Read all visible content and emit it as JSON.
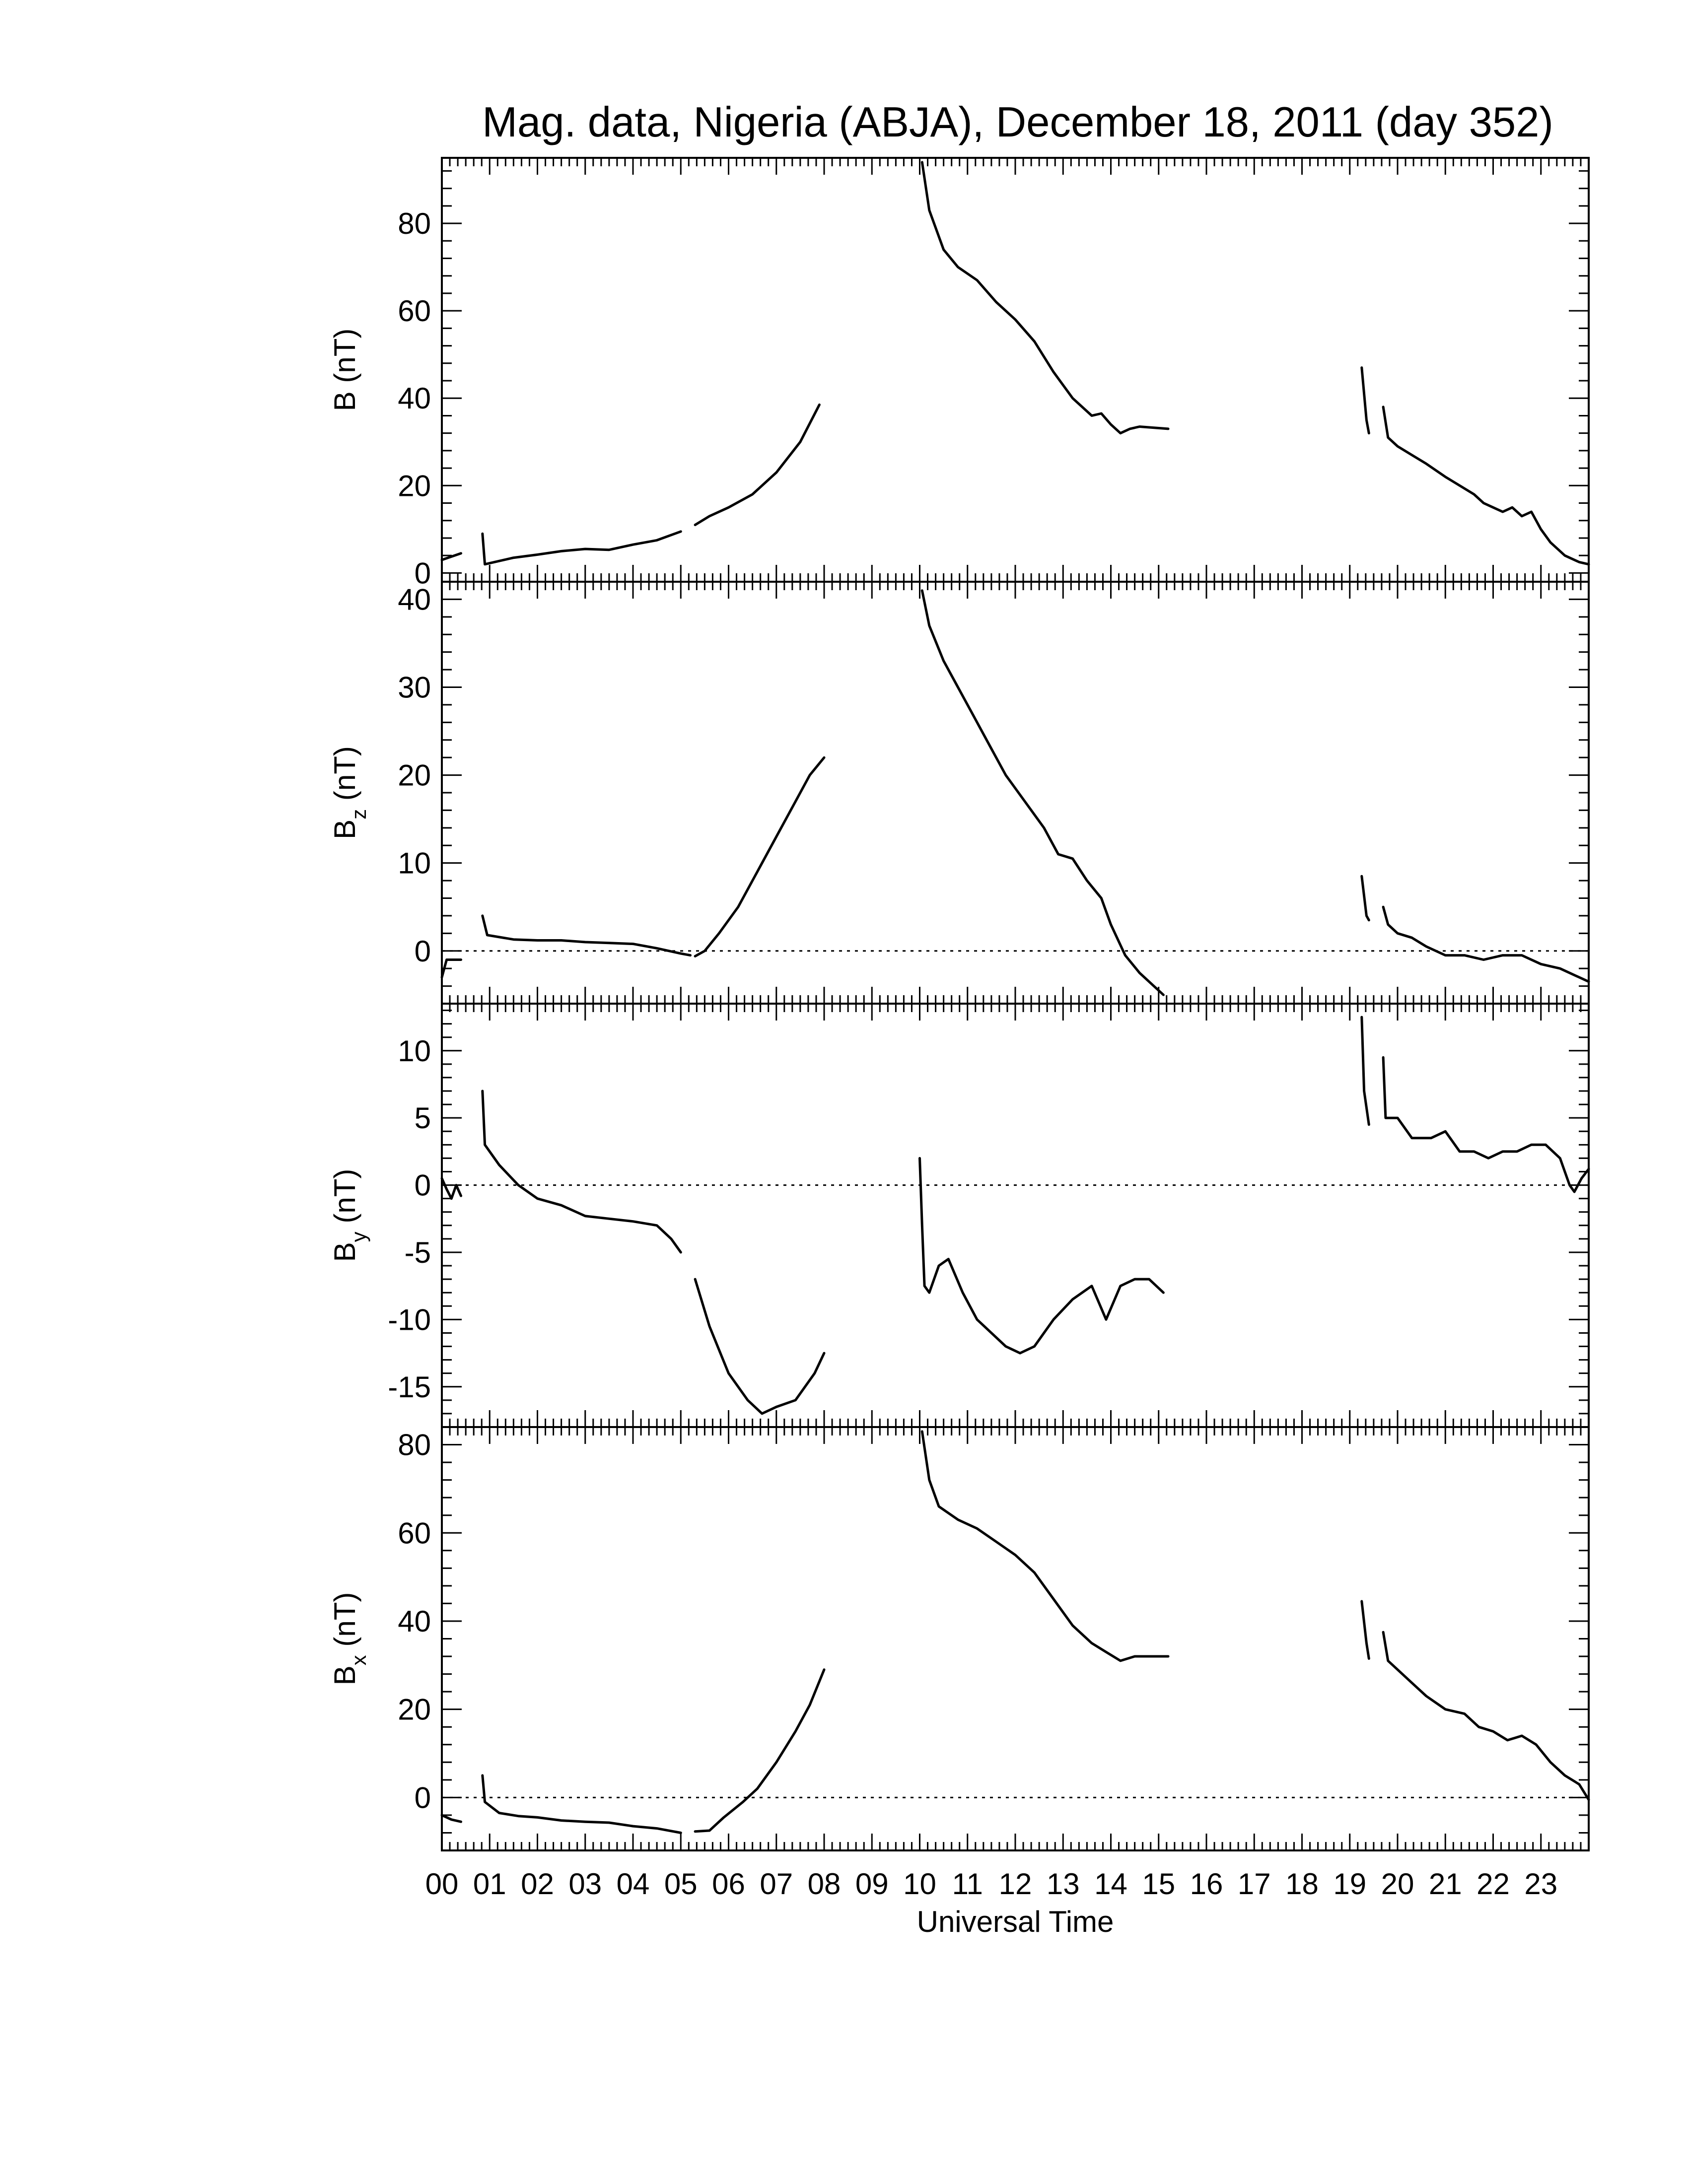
{
  "chart_data": {
    "type": "line",
    "title": "Mag. data, Nigeria (ABJA), December 18, 2011 (day 352)",
    "xlabel": "Universal Time",
    "x_unit": "hours UT",
    "xlim": [
      0,
      24
    ],
    "x_tick_labels": [
      "00",
      "01",
      "02",
      "03",
      "04",
      "05",
      "06",
      "07",
      "08",
      "09",
      "10",
      "11",
      "12",
      "13",
      "14",
      "15",
      "16",
      "17",
      "18",
      "19",
      "20",
      "21",
      "22",
      "23"
    ],
    "colors": {
      "line": "#000000",
      "zero_line": "#000000",
      "frame": "#000000"
    },
    "panels": [
      {
        "id": "B",
        "ylabel_main": "B",
        "ylabel_sub": "",
        "ylabel_unit": "(nT)",
        "ylim": [
          -2,
          95
        ],
        "yticks": [
          0,
          20,
          40,
          60,
          80
        ],
        "zero_line": false,
        "segments": [
          [
            [
              0.0,
              3
            ],
            [
              0.4,
              4.5
            ]
          ],
          [
            [
              0.85,
              9
            ],
            [
              0.9,
              2
            ],
            [
              1.5,
              3.5
            ],
            [
              2.0,
              4.2
            ],
            [
              2.5,
              5.0
            ],
            [
              3.0,
              5.5
            ],
            [
              3.5,
              5.3
            ],
            [
              4.0,
              6.5
            ],
            [
              4.5,
              7.5
            ],
            [
              5.0,
              9.5
            ]
          ],
          [
            [
              5.3,
              11
            ],
            [
              5.6,
              13
            ],
            [
              6.0,
              15
            ],
            [
              6.5,
              18
            ],
            [
              7.0,
              23
            ],
            [
              7.5,
              30
            ],
            [
              7.9,
              38.5
            ]
          ],
          [
            [
              10.05,
              94
            ],
            [
              10.2,
              83
            ],
            [
              10.5,
              74
            ],
            [
              10.8,
              70
            ],
            [
              11.2,
              67
            ],
            [
              11.6,
              62
            ],
            [
              12.0,
              58
            ],
            [
              12.4,
              53
            ],
            [
              12.8,
              46
            ],
            [
              13.2,
              40
            ],
            [
              13.6,
              36
            ],
            [
              13.8,
              36.5
            ],
            [
              14.0,
              34
            ],
            [
              14.2,
              32
            ],
            [
              14.4,
              33
            ],
            [
              14.6,
              33.5
            ],
            [
              15.2,
              33
            ]
          ],
          [
            [
              19.25,
              47
            ],
            [
              19.35,
              35
            ],
            [
              19.4,
              32
            ]
          ],
          [
            [
              19.7,
              38
            ],
            [
              19.8,
              31
            ],
            [
              20.0,
              29
            ],
            [
              20.3,
              27
            ],
            [
              20.6,
              25
            ],
            [
              21.0,
              22
            ],
            [
              21.3,
              20
            ],
            [
              21.6,
              18
            ],
            [
              21.8,
              16
            ],
            [
              22.0,
              15
            ],
            [
              22.2,
              14
            ],
            [
              22.4,
              15
            ],
            [
              22.6,
              13
            ],
            [
              22.8,
              14
            ],
            [
              23.0,
              10
            ],
            [
              23.2,
              7
            ],
            [
              23.5,
              4
            ],
            [
              23.8,
              2.5
            ],
            [
              24.0,
              2
            ]
          ]
        ]
      },
      {
        "id": "Bz",
        "ylabel_main": "B",
        "ylabel_sub": "z",
        "ylabel_unit": "(nT)",
        "ylim": [
          -6,
          42
        ],
        "yticks": [
          0,
          10,
          20,
          30,
          40
        ],
        "zero_line": true,
        "segments": [
          [
            [
              0.0,
              -3
            ],
            [
              0.1,
              -1
            ],
            [
              0.4,
              -1
            ]
          ],
          [
            [
              0.85,
              4
            ],
            [
              0.95,
              1.8
            ],
            [
              1.5,
              1.3
            ],
            [
              2.0,
              1.2
            ],
            [
              2.5,
              1.2
            ],
            [
              3.0,
              1.0
            ],
            [
              3.5,
              0.9
            ],
            [
              4.0,
              0.8
            ],
            [
              4.5,
              0.3
            ],
            [
              5.0,
              -0.3
            ],
            [
              5.2,
              -0.5
            ]
          ],
          [
            [
              5.3,
              -0.6
            ],
            [
              5.5,
              0
            ],
            [
              5.8,
              2
            ],
            [
              6.2,
              5
            ],
            [
              6.6,
              9
            ],
            [
              7.0,
              13
            ],
            [
              7.4,
              17
            ],
            [
              7.7,
              20
            ],
            [
              8.0,
              22
            ]
          ],
          [
            [
              10.05,
              41
            ],
            [
              10.2,
              37
            ],
            [
              10.5,
              33
            ],
            [
              10.8,
              30
            ],
            [
              11.1,
              27
            ],
            [
              11.5,
              23
            ],
            [
              11.8,
              20
            ],
            [
              12.2,
              17
            ],
            [
              12.6,
              14
            ],
            [
              12.9,
              11
            ],
            [
              13.2,
              10.5
            ],
            [
              13.5,
              8
            ],
            [
              13.8,
              6
            ],
            [
              14.0,
              3
            ],
            [
              14.3,
              -0.5
            ],
            [
              14.6,
              -2.5
            ],
            [
              14.9,
              -4
            ],
            [
              15.1,
              -5
            ]
          ],
          [
            [
              19.25,
              8.5
            ],
            [
              19.35,
              4
            ],
            [
              19.4,
              3.5
            ]
          ],
          [
            [
              19.7,
              5
            ],
            [
              19.8,
              3
            ],
            [
              20.0,
              2
            ],
            [
              20.3,
              1.5
            ],
            [
              20.6,
              0.5
            ],
            [
              21.0,
              -0.5
            ],
            [
              21.4,
              -0.5
            ],
            [
              21.8,
              -1
            ],
            [
              22.2,
              -0.5
            ],
            [
              22.6,
              -0.5
            ],
            [
              23.0,
              -1.5
            ],
            [
              23.4,
              -2
            ],
            [
              23.8,
              -3
            ],
            [
              24.0,
              -3.5
            ]
          ]
        ]
      },
      {
        "id": "By",
        "ylabel_main": "B",
        "ylabel_sub": "y",
        "ylabel_unit": "(nT)",
        "ylim": [
          -18,
          13.5
        ],
        "yticks": [
          -15,
          -10,
          -5,
          0,
          5,
          10
        ],
        "yticklabels": [
          "-15",
          "-10",
          "-5",
          "0",
          "5",
          "10"
        ],
        "zero_line": true,
        "segments": [
          [
            [
              0.0,
              0.5
            ],
            [
              0.1,
              -0.3
            ],
            [
              0.2,
              -1
            ],
            [
              0.3,
              0
            ],
            [
              0.4,
              -0.8
            ]
          ],
          [
            [
              0.85,
              7
            ],
            [
              0.9,
              3
            ],
            [
              1.2,
              1.5
            ],
            [
              1.6,
              0
            ],
            [
              2.0,
              -1
            ],
            [
              2.5,
              -1.5
            ],
            [
              3.0,
              -2.3
            ],
            [
              3.5,
              -2.5
            ],
            [
              4.0,
              -2.7
            ],
            [
              4.5,
              -3
            ],
            [
              4.8,
              -4
            ],
            [
              5.0,
              -5
            ]
          ],
          [
            [
              5.3,
              -7
            ],
            [
              5.6,
              -10.5
            ],
            [
              6.0,
              -14
            ],
            [
              6.4,
              -16
            ],
            [
              6.7,
              -17
            ],
            [
              7.0,
              -16.5
            ],
            [
              7.4,
              -16
            ],
            [
              7.8,
              -14
            ],
            [
              8.0,
              -12.5
            ]
          ],
          [
            [
              10.0,
              2
            ],
            [
              10.05,
              -3
            ],
            [
              10.1,
              -7.5
            ],
            [
              10.2,
              -8
            ],
            [
              10.4,
              -6
            ],
            [
              10.6,
              -5.5
            ],
            [
              10.9,
              -8
            ],
            [
              11.2,
              -10
            ],
            [
              11.5,
              -11
            ],
            [
              11.8,
              -12
            ],
            [
              12.1,
              -12.5
            ],
            [
              12.4,
              -12
            ],
            [
              12.8,
              -10
            ],
            [
              13.2,
              -8.5
            ],
            [
              13.6,
              -7.5
            ],
            [
              13.9,
              -10
            ],
            [
              14.2,
              -7.5
            ],
            [
              14.5,
              -7
            ],
            [
              14.8,
              -7
            ],
            [
              15.1,
              -8
            ]
          ],
          [
            [
              19.25,
              12.5
            ],
            [
              19.3,
              7
            ],
            [
              19.4,
              4.5
            ]
          ],
          [
            [
              19.7,
              9.5
            ],
            [
              19.75,
              5
            ],
            [
              20.0,
              5
            ],
            [
              20.3,
              3.5
            ],
            [
              20.7,
              3.5
            ],
            [
              21.0,
              4
            ],
            [
              21.3,
              2.5
            ],
            [
              21.6,
              2.5
            ],
            [
              21.9,
              2
            ],
            [
              22.2,
              2.5
            ],
            [
              22.5,
              2.5
            ],
            [
              22.8,
              3
            ],
            [
              23.1,
              3
            ],
            [
              23.4,
              2
            ],
            [
              23.6,
              0
            ],
            [
              23.7,
              -0.5
            ],
            [
              23.85,
              0.5
            ],
            [
              24.0,
              1.2
            ]
          ]
        ]
      },
      {
        "id": "Bx",
        "ylabel_main": "B",
        "ylabel_sub": "x",
        "ylabel_unit": "(nT)",
        "ylim": [
          -12,
          84
        ],
        "yticks": [
          0,
          20,
          40,
          60,
          80
        ],
        "zero_line": true,
        "segments": [
          [
            [
              0.0,
              -4
            ],
            [
              0.2,
              -5
            ],
            [
              0.4,
              -5.5
            ]
          ],
          [
            [
              0.85,
              5
            ],
            [
              0.9,
              -1
            ],
            [
              1.2,
              -3.5
            ],
            [
              1.6,
              -4.2
            ],
            [
              2.0,
              -4.5
            ],
            [
              2.5,
              -5.2
            ],
            [
              3.0,
              -5.5
            ],
            [
              3.5,
              -5.7
            ],
            [
              4.0,
              -6.5
            ],
            [
              4.5,
              -7
            ],
            [
              5.0,
              -8
            ]
          ],
          [
            [
              5.3,
              -7.7
            ],
            [
              5.6,
              -7.5
            ],
            [
              5.9,
              -4.5
            ],
            [
              6.3,
              -1
            ],
            [
              6.6,
              2
            ],
            [
              7.0,
              8
            ],
            [
              7.4,
              15
            ],
            [
              7.7,
              21
            ],
            [
              8.0,
              29
            ]
          ],
          [
            [
              10.05,
              83
            ],
            [
              10.2,
              72
            ],
            [
              10.4,
              66
            ],
            [
              10.8,
              63
            ],
            [
              11.2,
              61
            ],
            [
              11.6,
              58
            ],
            [
              12.0,
              55
            ],
            [
              12.4,
              51
            ],
            [
              12.8,
              45
            ],
            [
              13.2,
              39
            ],
            [
              13.6,
              35
            ],
            [
              13.9,
              33
            ],
            [
              14.2,
              31
            ],
            [
              14.5,
              32
            ],
            [
              15.2,
              32
            ]
          ],
          [
            [
              19.25,
              44.5
            ],
            [
              19.35,
              35
            ],
            [
              19.4,
              31.5
            ]
          ],
          [
            [
              19.7,
              37.5
            ],
            [
              19.8,
              31
            ],
            [
              20.0,
              29
            ],
            [
              20.3,
              26
            ],
            [
              20.6,
              23
            ],
            [
              21.0,
              20
            ],
            [
              21.4,
              19
            ],
            [
              21.7,
              16
            ],
            [
              22.0,
              15
            ],
            [
              22.3,
              13
            ],
            [
              22.6,
              14
            ],
            [
              22.9,
              12
            ],
            [
              23.2,
              8
            ],
            [
              23.5,
              5
            ],
            [
              23.8,
              3
            ],
            [
              24.0,
              -0.5
            ]
          ]
        ]
      }
    ]
  }
}
